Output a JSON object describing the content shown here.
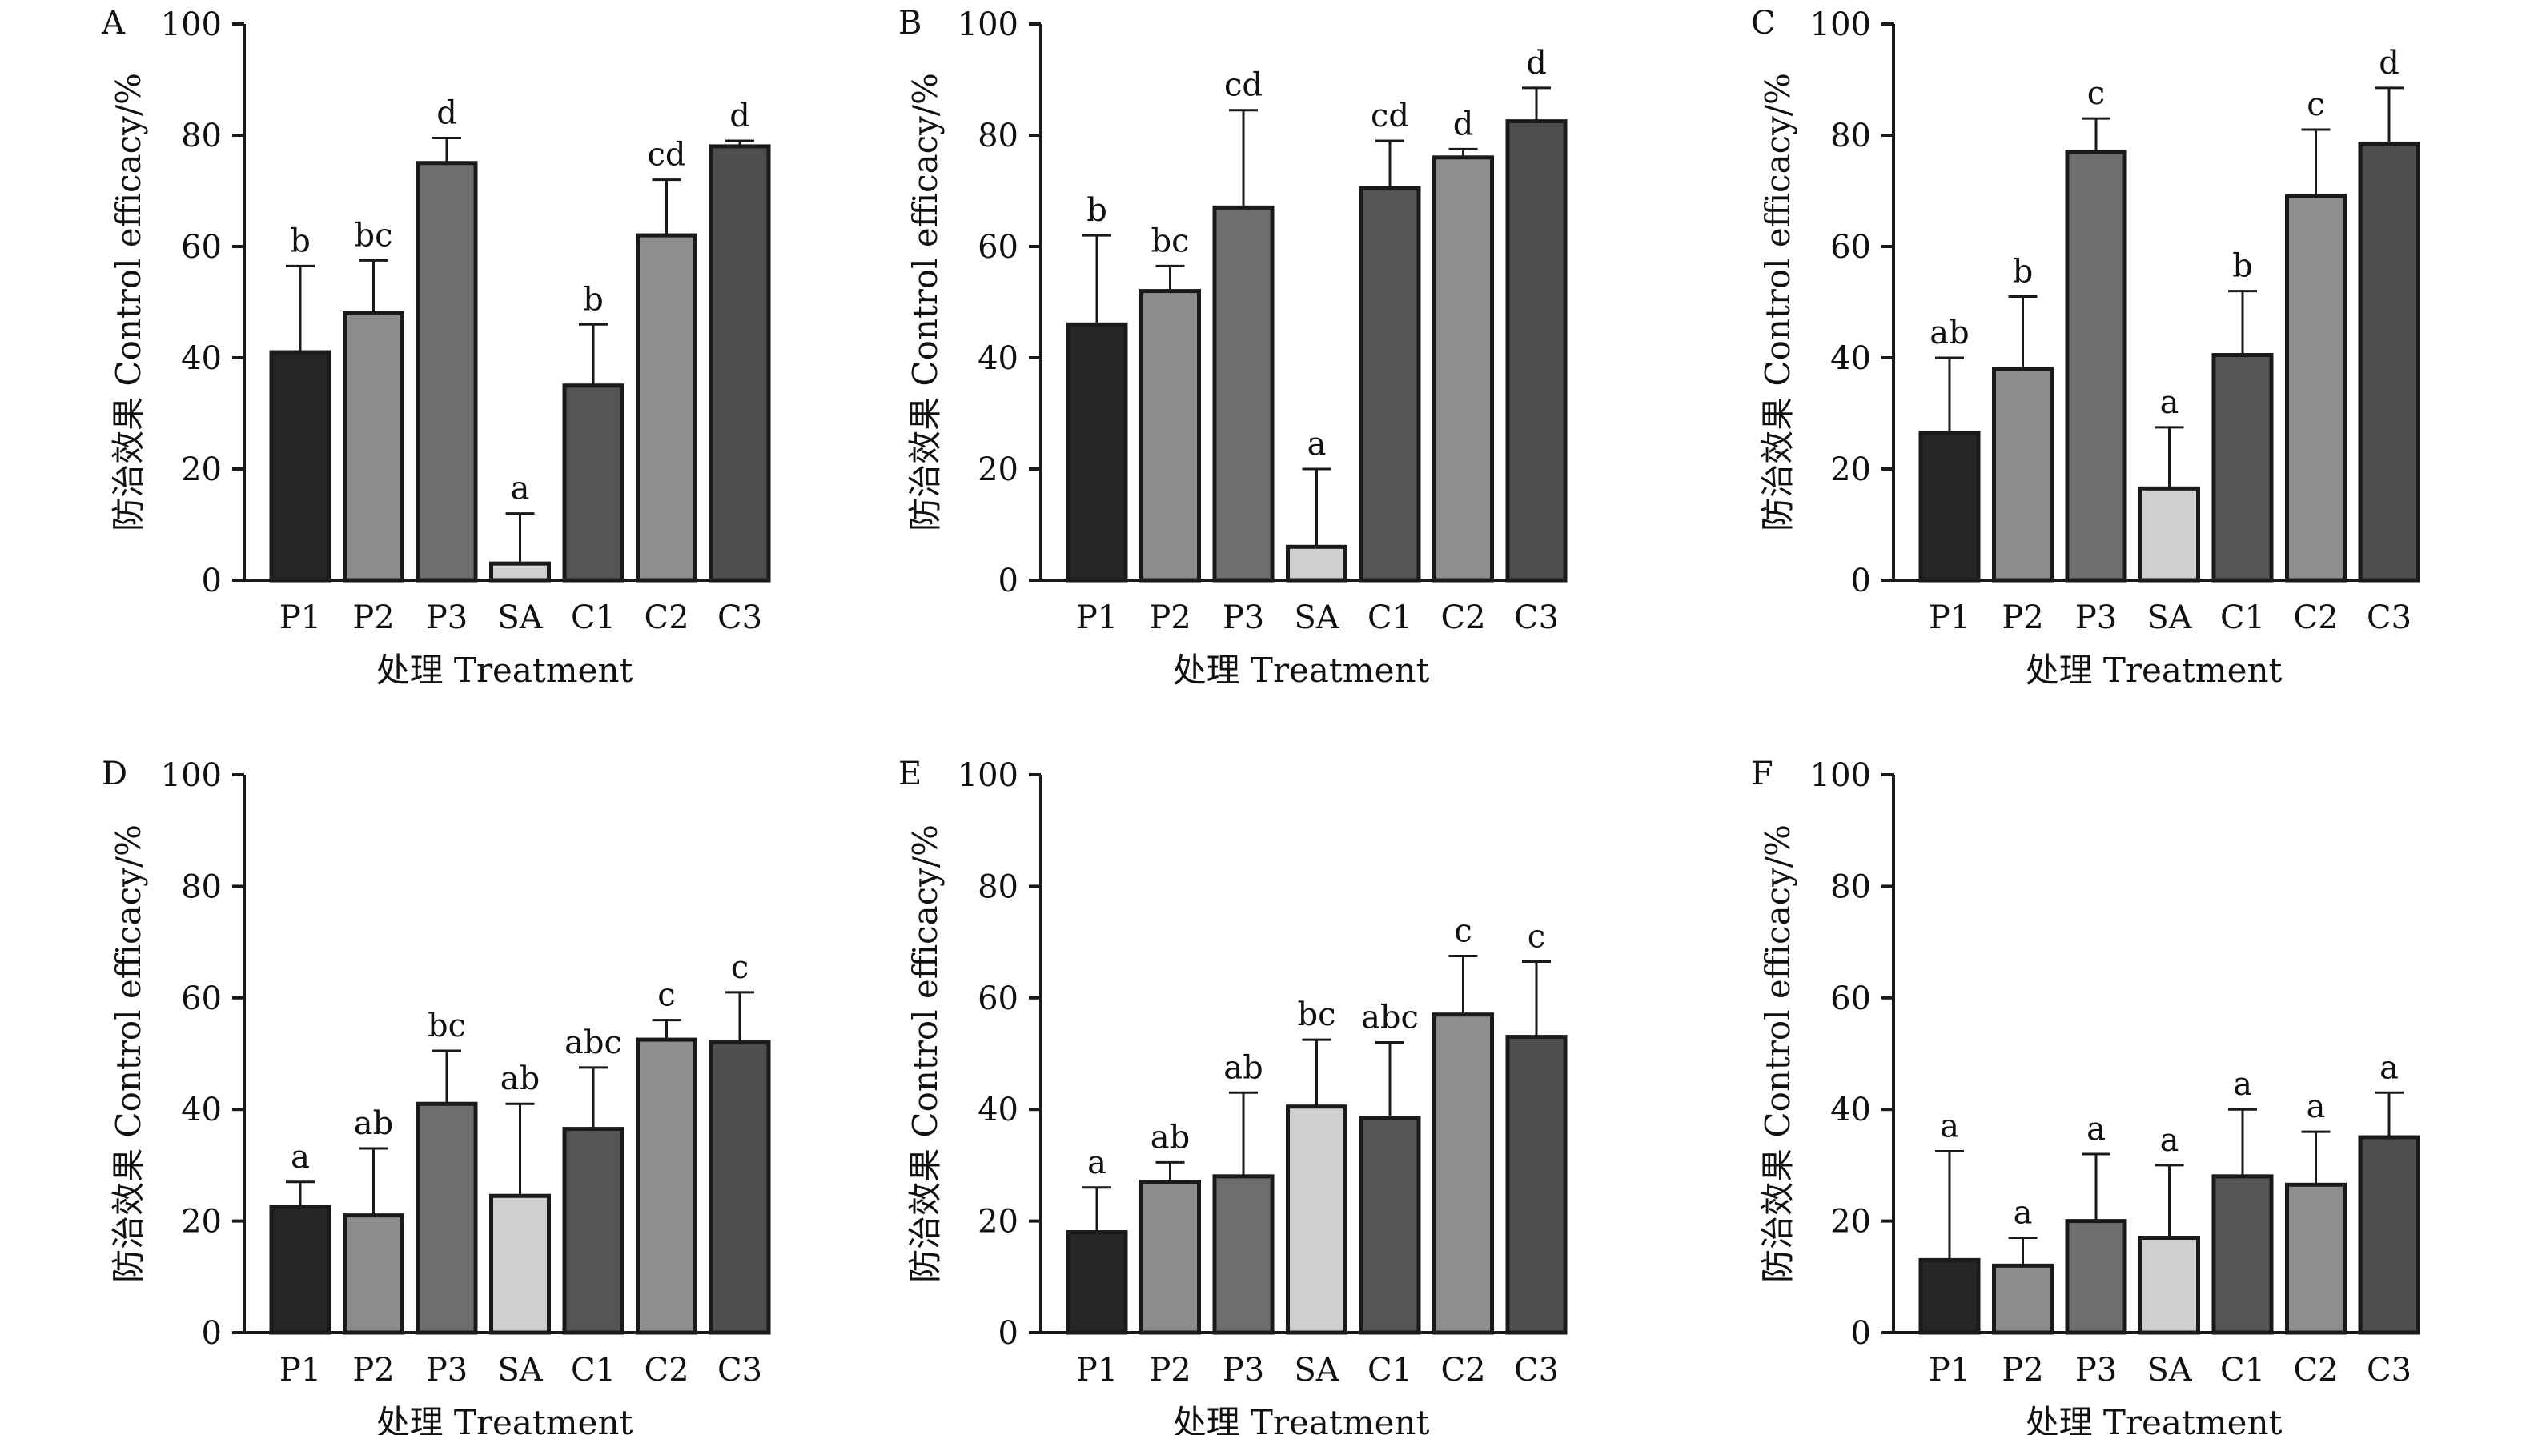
{
  "figure": {
    "ylabel": "防治效果 Control efficacy/%",
    "xlabel": "处理 Treatment"
  },
  "chart_data": [
    {
      "type": "bar",
      "panel": "A",
      "categories": [
        "P1",
        "P2",
        "P3",
        "SA",
        "C1",
        "C2",
        "C3"
      ],
      "values": [
        41,
        48,
        75,
        3,
        35,
        62,
        78
      ],
      "errors": [
        15.5,
        9.5,
        4.5,
        9,
        11,
        10,
        1
      ],
      "letters": [
        "b",
        "bc",
        "d",
        "a",
        "b",
        "cd",
        "d"
      ],
      "xlabel": "处理 Treatment",
      "ylabel": "防治效果 Control efficacy/%",
      "ylim": [
        0,
        100
      ],
      "yticks": [
        0,
        20,
        40,
        60,
        80,
        100
      ]
    },
    {
      "type": "bar",
      "panel": "B",
      "categories": [
        "P1",
        "P2",
        "P3",
        "SA",
        "C1",
        "C2",
        "C3"
      ],
      "values": [
        46,
        52,
        67,
        6,
        70.5,
        76,
        82.5
      ],
      "errors": [
        16,
        4.5,
        17.5,
        14,
        8.5,
        1.5,
        6
      ],
      "letters": [
        "b",
        "bc",
        "cd",
        "a",
        "cd",
        "d",
        "d"
      ],
      "xlabel": "处理 Treatment",
      "ylabel": "防治效果 Control efficacy/%",
      "ylim": [
        0,
        100
      ],
      "yticks": [
        0,
        20,
        40,
        60,
        80,
        100
      ]
    },
    {
      "type": "bar",
      "panel": "C",
      "categories": [
        "P1",
        "P2",
        "P3",
        "SA",
        "C1",
        "C2",
        "C3"
      ],
      "values": [
        26.5,
        38,
        77,
        16.5,
        40.5,
        69,
        78.5
      ],
      "errors": [
        13.5,
        13,
        6,
        11,
        11.5,
        12,
        10
      ],
      "letters": [
        "ab",
        "b",
        "c",
        "a",
        "b",
        "c",
        "d"
      ],
      "xlabel": "处理 Treatment",
      "ylabel": "防治效果 Control efficacy/%",
      "ylim": [
        0,
        100
      ],
      "yticks": [
        0,
        20,
        40,
        60,
        80,
        100
      ]
    },
    {
      "type": "bar",
      "panel": "D",
      "categories": [
        "P1",
        "P2",
        "P3",
        "SA",
        "C1",
        "C2",
        "C3"
      ],
      "values": [
        22.5,
        21,
        41,
        24.5,
        36.5,
        52.5,
        52
      ],
      "errors": [
        4.5,
        12,
        9.5,
        16.5,
        11,
        3.5,
        9
      ],
      "letters": [
        "a",
        "ab",
        "bc",
        "ab",
        "abc",
        "c",
        "c"
      ],
      "xlabel": "处理 Treatment",
      "ylabel": "防治效果 Control efficacy/%",
      "ylim": [
        0,
        100
      ],
      "yticks": [
        0,
        20,
        40,
        60,
        80,
        100
      ]
    },
    {
      "type": "bar",
      "panel": "E",
      "categories": [
        "P1",
        "P2",
        "P3",
        "SA",
        "C1",
        "C2",
        "C3"
      ],
      "values": [
        18,
        27,
        28,
        40.5,
        38.5,
        57,
        53
      ],
      "errors": [
        8,
        3.5,
        15,
        12,
        13.5,
        10.5,
        13.5
      ],
      "letters": [
        "a",
        "ab",
        "ab",
        "bc",
        "abc",
        "c",
        "c"
      ],
      "xlabel": "处理 Treatment",
      "ylabel": "防治效果 Control efficacy/%",
      "ylim": [
        0,
        100
      ],
      "yticks": [
        0,
        20,
        40,
        60,
        80,
        100
      ]
    },
    {
      "type": "bar",
      "panel": "F",
      "categories": [
        "P1",
        "P2",
        "P3",
        "SA",
        "C1",
        "C2",
        "C3"
      ],
      "values": [
        13,
        12,
        20,
        17,
        28,
        26.5,
        35
      ],
      "errors": [
        19.5,
        5,
        12,
        13,
        12,
        9.5,
        8
      ],
      "letters": [
        "a",
        "a",
        "a",
        "a",
        "a",
        "a",
        "a"
      ],
      "xlabel": "处理 Treatment",
      "ylabel": "防治效果 Control efficacy/%",
      "ylim": [
        0,
        100
      ],
      "yticks": [
        0,
        20,
        40,
        60,
        80,
        100
      ]
    }
  ],
  "colors": {
    "P1": "#262626",
    "P2": "#8c8c8c",
    "P3": "#6e6e6e",
    "SA": "#cfcfcf",
    "C1": "#555555",
    "C2": "#8e8e8e",
    "C3": "#4f4f4f",
    "axis": "#1a1a1a",
    "bar_stroke": "#1a1a1a"
  }
}
